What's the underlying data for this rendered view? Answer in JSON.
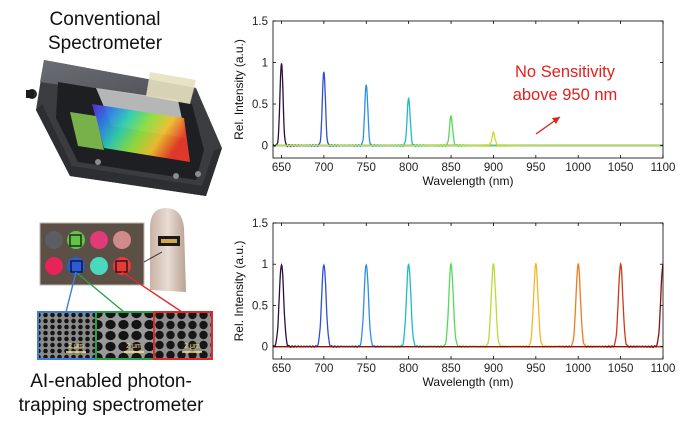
{
  "figure": {
    "top_label": [
      "Conventional",
      "Spectrometer"
    ],
    "bottom_label": [
      "AI-enabled photon-",
      "trapping spectrometer"
    ],
    "scale_bars": [
      "2 μm",
      "2 μm",
      "2 μm"
    ]
  },
  "chart_data": [
    {
      "type": "line",
      "title": "",
      "xlabel": "Wavelength (nm)",
      "ylabel": "Rel. Intensity (a.u.)",
      "xlim": [
        640,
        1100
      ],
      "ylim": [
        -0.15,
        1.5
      ],
      "xticks": [
        650,
        700,
        750,
        800,
        850,
        900,
        950,
        1000,
        1050,
        1100
      ],
      "yticks": [
        0,
        0.5,
        1,
        1.5
      ],
      "ytick_labels": [
        "0",
        "0.5",
        "1",
        "1.5"
      ],
      "peak_width_nm": 1.8,
      "series": [
        {
          "name": "650 nm",
          "center": 650,
          "peak": 1.0,
          "color": "#2b0f3a"
        },
        {
          "name": "700 nm",
          "center": 700,
          "peak": 0.9,
          "color": "#2e4fd6"
        },
        {
          "name": "750 nm",
          "center": 750,
          "peak": 0.74,
          "color": "#2d8fe6"
        },
        {
          "name": "800 nm",
          "center": 800,
          "peak": 0.57,
          "color": "#22b9c8"
        },
        {
          "name": "850 nm",
          "center": 850,
          "peak": 0.35,
          "color": "#57d85a"
        },
        {
          "name": "900 nm",
          "center": 900,
          "peak": 0.15,
          "color": "#c8d936"
        }
      ],
      "annotation": {
        "lines": [
          "No Sensitivity",
          "above 950 nm"
        ],
        "color": "#e3201b"
      }
    },
    {
      "type": "line",
      "title": "",
      "xlabel": "Wavelength (nm)",
      "ylabel": "Rel. Intensity (a.u.)",
      "xlim": [
        640,
        1100
      ],
      "ylim": [
        -0.15,
        1.5
      ],
      "xticks": [
        650,
        700,
        750,
        800,
        850,
        900,
        950,
        1000,
        1050,
        1100
      ],
      "yticks": [
        0,
        0.5,
        1,
        1.5
      ],
      "ytick_labels": [
        "0",
        "0.5",
        "1",
        "1.5"
      ],
      "peak_width_nm": 2.6,
      "series": [
        {
          "name": "650 nm",
          "center": 650,
          "peak": 1.0,
          "color": "#2b0f3a"
        },
        {
          "name": "700 nm",
          "center": 700,
          "peak": 1.0,
          "color": "#2e4fd6"
        },
        {
          "name": "750 nm",
          "center": 750,
          "peak": 1.0,
          "color": "#2d8fe6"
        },
        {
          "name": "800 nm",
          "center": 800,
          "peak": 1.0,
          "color": "#22b9c8"
        },
        {
          "name": "850 nm",
          "center": 850,
          "peak": 1.0,
          "color": "#57d85a"
        },
        {
          "name": "900 nm",
          "center": 900,
          "peak": 1.0,
          "color": "#b8dc3a"
        },
        {
          "name": "950 nm",
          "center": 950,
          "peak": 1.0,
          "color": "#f2b62a"
        },
        {
          "name": "1000 nm",
          "center": 1000,
          "peak": 1.0,
          "color": "#ef7a22"
        },
        {
          "name": "1050 nm",
          "center": 1050,
          "peak": 1.0,
          "color": "#d2371d"
        },
        {
          "name": "1100 nm",
          "center": 1100,
          "peak": 1.0,
          "color": "#8a1010"
        }
      ]
    }
  ]
}
